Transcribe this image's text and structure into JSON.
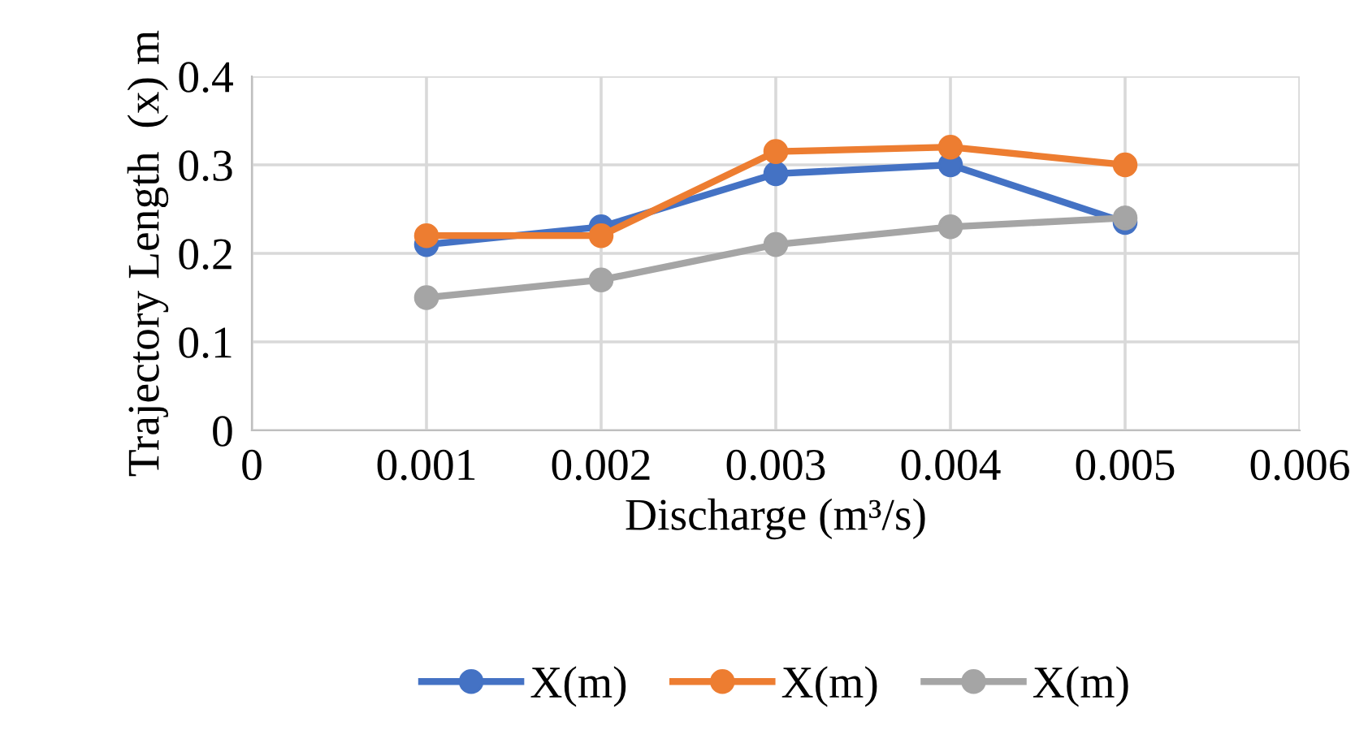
{
  "chart_data": {
    "type": "line",
    "xlabel": "Discharge (m³/s)",
    "ylabel": "Trajectory Length  (x) m",
    "x": [
      0.001,
      0.002,
      0.003,
      0.004,
      0.005
    ],
    "series": [
      {
        "name": "X(m)",
        "color": "#4472c4",
        "values": [
          0.21,
          0.23,
          0.29,
          0.3,
          0.235
        ]
      },
      {
        "name": "X(m)",
        "color": "#ed7d31",
        "values": [
          0.22,
          0.22,
          0.315,
          0.32,
          0.3
        ]
      },
      {
        "name": "X(m)",
        "color": "#a5a5a5",
        "values": [
          0.15,
          0.17,
          0.21,
          0.23,
          0.24
        ]
      }
    ],
    "xlim": [
      0,
      0.006
    ],
    "xticks": [
      0,
      0.001,
      0.002,
      0.003,
      0.004,
      0.005,
      0.006
    ],
    "ylim": [
      0,
      0.4
    ],
    "yticks": [
      0,
      0.1,
      0.2,
      0.3,
      0.4
    ],
    "grid": true,
    "legend": "bottom",
    "marker": "circle",
    "line_style": "solid"
  }
}
